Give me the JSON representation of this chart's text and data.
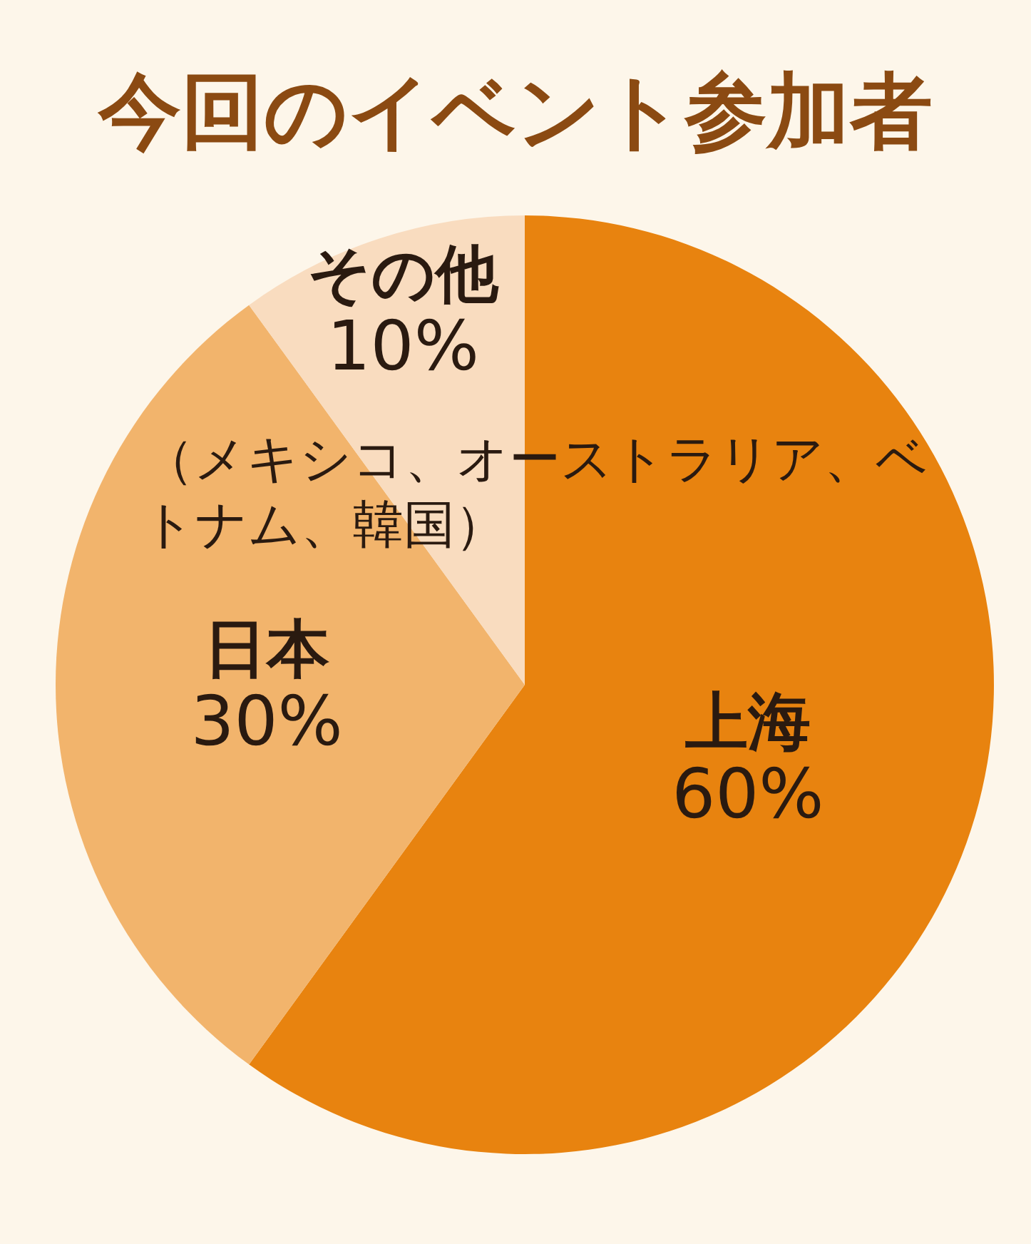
{
  "chart_data": {
    "type": "pie",
    "title": "今回のイベント参加者",
    "categories": [
      "上海",
      "日本",
      "その他"
    ],
    "values": [
      60,
      30,
      10
    ],
    "value_labels": [
      "60%",
      "30%",
      "10%"
    ],
    "colors": [
      "#e8830f",
      "#f2b46c",
      "#f9dcbf"
    ],
    "annotations": [
      "（メキシコ、オーストラリア、ベトナム、韓国）"
    ]
  }
}
